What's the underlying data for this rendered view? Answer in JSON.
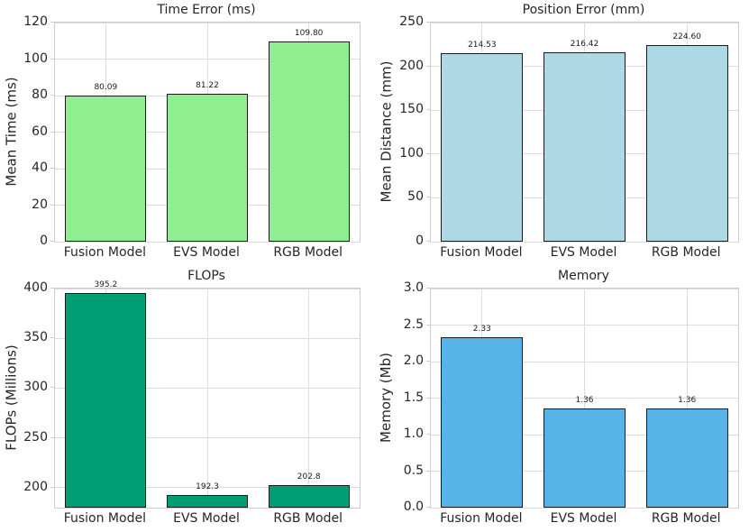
{
  "figure": {
    "background": "#ffffff",
    "models": [
      "Fusion Model",
      "EVS Model",
      "RGB Model"
    ]
  },
  "colors": {
    "text": "#262626",
    "value_label_text": "#1a1a1a",
    "grid": "#dcdcdc",
    "spine": "#cccccc",
    "bar_edge": "#1a1a1a"
  },
  "chart_data": [
    {
      "type": "bar",
      "title": "Time Error (ms)",
      "xlabel": "",
      "ylabel": "Mean Time (ms)",
      "categories": [
        "Fusion Model",
        "EVS Model",
        "RGB Model"
      ],
      "values": [
        80.09,
        81.22,
        109.8
      ],
      "value_labels": [
        "80.09",
        "81.22",
        "109.80"
      ],
      "ylim": [
        0,
        120
      ],
      "ytick_values": [
        0,
        20,
        40,
        60,
        80,
        100,
        120
      ],
      "ytick_labels": [
        "0",
        "20",
        "40",
        "60",
        "80",
        "100",
        "120"
      ],
      "bar_color": "#90EE90",
      "grid": true,
      "legend": "none"
    },
    {
      "type": "bar",
      "title": "Position Error (mm)",
      "xlabel": "",
      "ylabel": "Mean Distance (mm)",
      "categories": [
        "Fusion Model",
        "EVS Model",
        "RGB Model"
      ],
      "values": [
        214.53,
        216.42,
        224.6
      ],
      "value_labels": [
        "214.53",
        "216.42",
        "224.60"
      ],
      "ylim": [
        0,
        250
      ],
      "ytick_values": [
        0,
        50,
        100,
        150,
        200,
        250
      ],
      "ytick_labels": [
        "0",
        "50",
        "100",
        "150",
        "200",
        "250"
      ],
      "bar_color": "#ADD8E6",
      "grid": true,
      "legend": "none"
    },
    {
      "type": "bar",
      "title": "FLOPs",
      "xlabel": "",
      "ylabel": "FLOPs (Millions)",
      "categories": [
        "Fusion Model",
        "EVS Model",
        "RGB Model"
      ],
      "values": [
        395.2,
        192.3,
        202.8
      ],
      "value_labels": [
        "395.2",
        "192.3",
        "202.8"
      ],
      "ylim": [
        180,
        400
      ],
      "ytick_values": [
        200,
        250,
        300,
        350,
        400
      ],
      "ytick_labels": [
        "200",
        "250",
        "300",
        "350",
        "400"
      ],
      "bar_color": "#009E73",
      "grid": true,
      "legend": "none"
    },
    {
      "type": "bar",
      "title": "Memory",
      "xlabel": "",
      "ylabel": "Memory (Mb)",
      "categories": [
        "Fusion Model",
        "EVS Model",
        "RGB Model"
      ],
      "values": [
        2.33,
        1.36,
        1.36
      ],
      "value_labels": [
        "2.33",
        "1.36",
        "1.36"
      ],
      "ylim": [
        0,
        3.0
      ],
      "ytick_values": [
        0,
        0.5,
        1.0,
        1.5,
        2.0,
        2.5,
        3.0
      ],
      "ytick_labels": [
        "0.0",
        "0.5",
        "1.0",
        "1.5",
        "2.0",
        "2.5",
        "3.0"
      ],
      "bar_color": "#56B4E9",
      "grid": true,
      "legend": "none"
    }
  ]
}
